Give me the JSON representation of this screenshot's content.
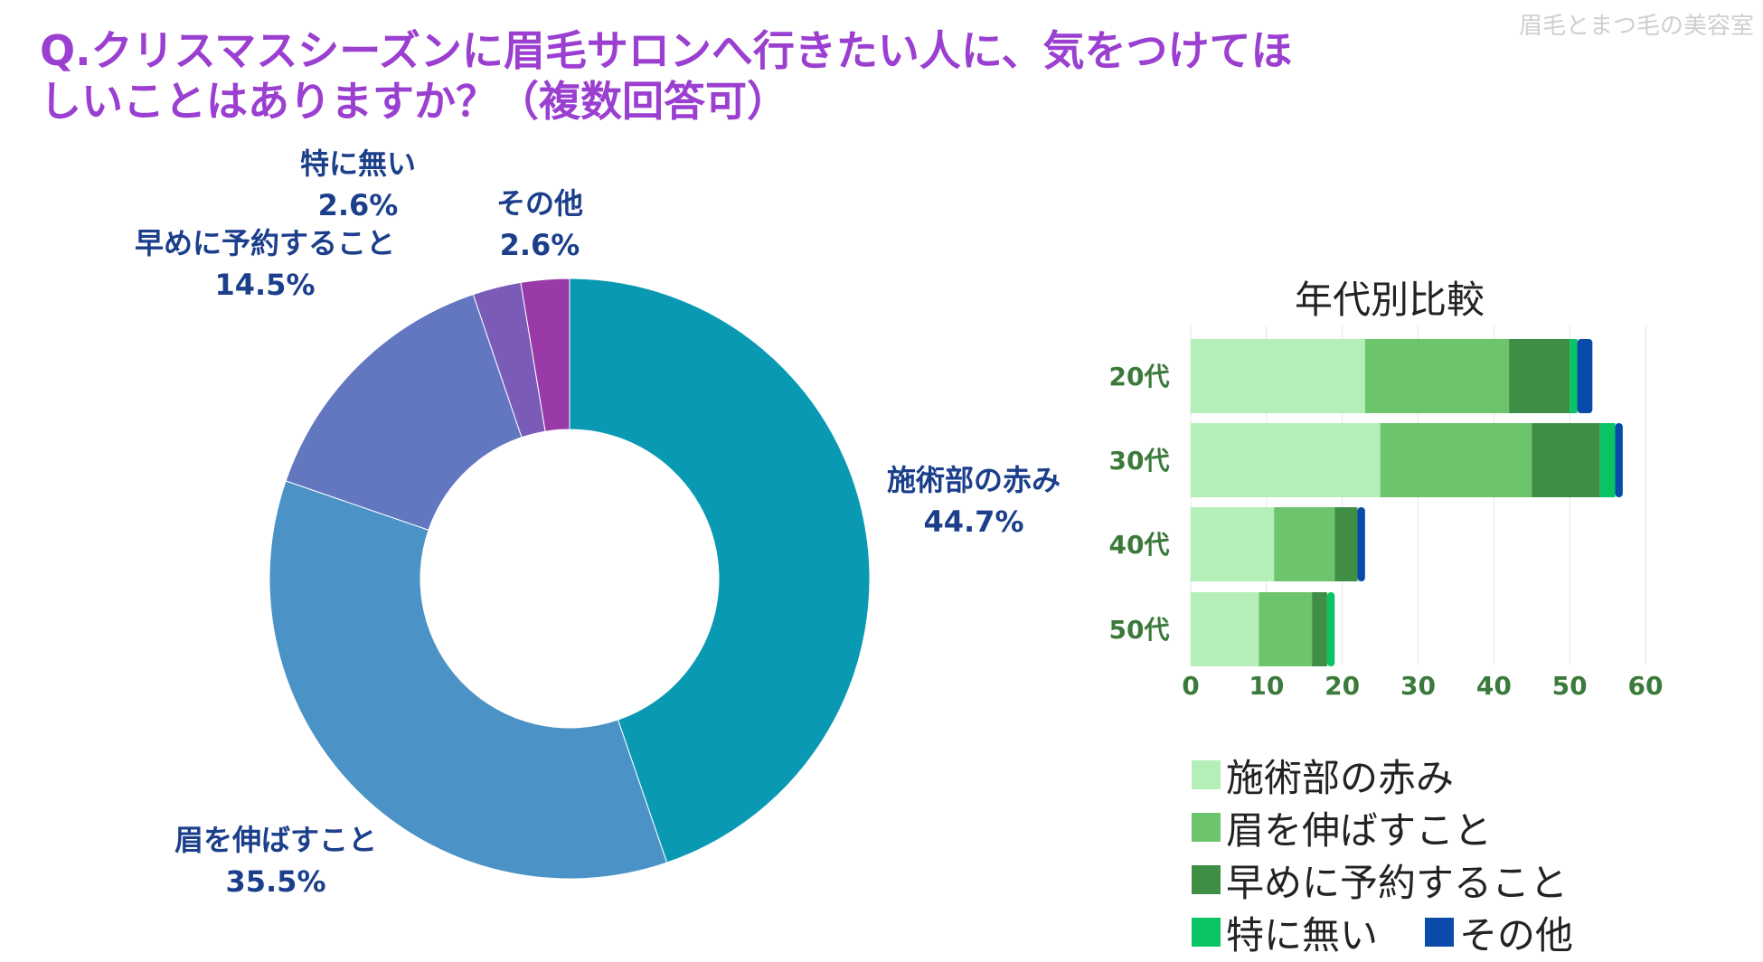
{
  "title": "Q.クリスマスシーズンに眉毛サロンへ行きたい人に、気をつけてほしいことはありますか？（複数回答可）",
  "watermark": "眉毛とまつ毛の美容室",
  "chart_data": [
    {
      "type": "pie",
      "donut": true,
      "slices": [
        {
          "label": "施術部の赤み",
          "value": 44.7,
          "display": "44.7%",
          "color": "#0a99b3"
        },
        {
          "label": "眉を伸ばすこと",
          "value": 35.5,
          "display": "35.5%",
          "color": "#4b92c6"
        },
        {
          "label": "早めに予約すること",
          "value": 14.5,
          "display": "14.5%",
          "color": "#6277c0"
        },
        {
          "label": "特に無い",
          "value": 2.6,
          "display": "2.6%",
          "color": "#7b5bb8"
        },
        {
          "label": "その他",
          "value": 2.6,
          "display": "2.6%",
          "color": "#9a3aa8"
        }
      ]
    },
    {
      "type": "bar",
      "orientation": "horizontal",
      "stacked": true,
      "title": "年代別比較",
      "categories": [
        "20代",
        "30代",
        "40代",
        "50代"
      ],
      "series": [
        {
          "name": "施術部の赤み",
          "color": "#b5efb8",
          "values": [
            23,
            25,
            11,
            9
          ]
        },
        {
          "name": "眉を伸ばすこと",
          "color": "#6cc46d",
          "values": [
            19,
            20,
            8,
            7
          ]
        },
        {
          "name": "早めに予約すること",
          "color": "#3e8e46",
          "values": [
            8,
            9,
            3,
            2
          ]
        },
        {
          "name": "特に無い",
          "color": "#08c463",
          "values": [
            1,
            2,
            0,
            1
          ]
        },
        {
          "name": "その他",
          "color": "#0a4aa8",
          "values": [
            2,
            1,
            1,
            0
          ]
        }
      ],
      "xlim": [
        0,
        60
      ],
      "xticks": [
        0,
        10,
        20,
        30,
        40,
        50,
        60
      ],
      "tick_color": "#3b7a3b"
    }
  ]
}
